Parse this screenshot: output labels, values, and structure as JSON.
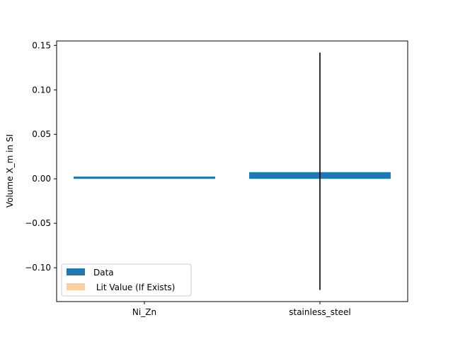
{
  "chart_data": {
    "type": "bar",
    "categories": [
      "Ni_Zn",
      "stainless_steel"
    ],
    "series": [
      {
        "name": "Data",
        "values": [
          0.0025,
          0.0075
        ],
        "error": [
          null,
          [
            -0.125,
            0.142
          ]
        ],
        "color": "#1f77b4"
      },
      {
        "name": " Lit Value (If Exists)",
        "values": [
          null,
          null
        ],
        "color": "#ffbb78"
      }
    ],
    "xlabel": "",
    "ylabel": "Volume X_m in SI",
    "ylim": [
      -0.138,
      0.155
    ],
    "yticks": [
      -0.1,
      -0.05,
      0.0,
      0.05,
      0.1,
      0.15
    ],
    "ytick_labels": [
      "−0.10",
      "−0.05",
      "0.00",
      "0.05",
      "0.10",
      "0.15"
    ],
    "grid": false,
    "legend": "lower-left"
  }
}
